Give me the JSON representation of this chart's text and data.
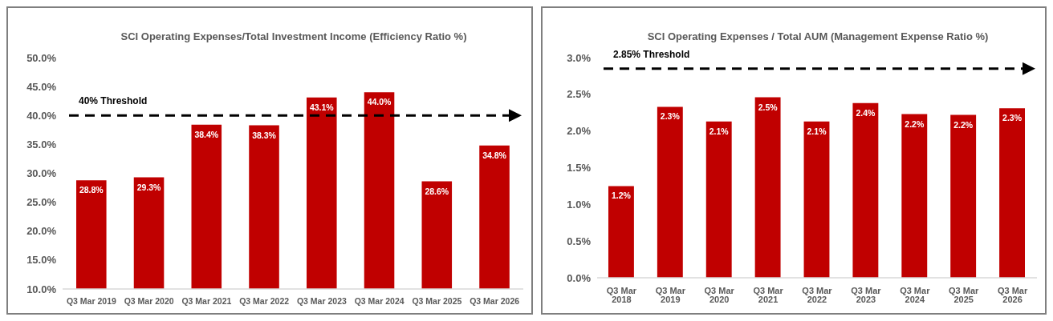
{
  "chart_data": [
    {
      "type": "bar",
      "title": "SCI Operating Expenses/Total Investment Income (Efficiency Ratio %)",
      "categories": [
        "Q3 Mar 2019",
        "Q3 Mar 2020",
        "Q3 Mar 2021",
        "Q3 Mar 2022",
        "Q3 Mar 2023",
        "Q3 Mar 2024",
        "Q3 Mar 2025",
        "Q3 Mar 2026"
      ],
      "values": [
        28.8,
        29.3,
        38.4,
        38.3,
        43.1,
        44.0,
        28.6,
        34.8
      ],
      "value_labels": [
        "28.8%",
        "29.3%",
        "38.4%",
        "38.3%",
        "43.1%",
        "44.0%",
        "28.6%",
        "34.8%"
      ],
      "color": "#c00000",
      "ylim": [
        10,
        50
      ],
      "yticks": [
        {
          "value": 10,
          "label": "10.0%"
        },
        {
          "value": 15,
          "label": "15.0%"
        },
        {
          "value": 20,
          "label": "20.0%"
        },
        {
          "value": 25,
          "label": "25.0%"
        },
        {
          "value": 30,
          "label": "30.0%"
        },
        {
          "value": 35,
          "label": "35.0%"
        },
        {
          "value": 40,
          "label": "40.0%"
        },
        {
          "value": 45,
          "label": "45.0%"
        },
        {
          "value": 50,
          "label": "50.0%"
        }
      ],
      "ref_lines": [
        {
          "axis": "y",
          "value": 40,
          "label": "40% Threshold",
          "color": "#000000",
          "line_style": "dashed"
        }
      ]
    },
    {
      "type": "bar",
      "title": "SCI Operating Expenses / Total AUM (Management Expense Ratio %)",
      "categories": [
        "Q3 Mar 2018",
        "Q3 Mar 2019",
        "Q3 Mar 2020",
        "Q3 Mar 2021",
        "Q3 Mar 2022",
        "Q3 Mar 2023",
        "Q3 Mar 2024",
        "Q3 Mar 2025",
        "Q3 Mar 2026"
      ],
      "values": [
        1.25,
        2.33,
        2.13,
        2.46,
        2.13,
        2.38,
        2.23,
        2.22,
        2.31
      ],
      "value_labels": [
        "1.2%",
        "2.3%",
        "2.1%",
        "2.5%",
        "2.1%",
        "2.4%",
        "2.2%",
        "2.2%",
        "2.3%"
      ],
      "color": "#c00000",
      "ylim": [
        0,
        3
      ],
      "yticks": [
        {
          "value": 0,
          "label": "0.0%"
        },
        {
          "value": 0.5,
          "label": "0.5%"
        },
        {
          "value": 1,
          "label": "1.0%"
        },
        {
          "value": 1.5,
          "label": "1.5%"
        },
        {
          "value": 2,
          "label": "2.0%"
        },
        {
          "value": 2.5,
          "label": "2.5%"
        },
        {
          "value": 3,
          "label": "3.0%"
        }
      ],
      "ref_lines": [
        {
          "axis": "y",
          "value": 2.85,
          "label": "2.85% Threshold",
          "color": "#000000",
          "line_style": "dashed"
        }
      ]
    }
  ]
}
